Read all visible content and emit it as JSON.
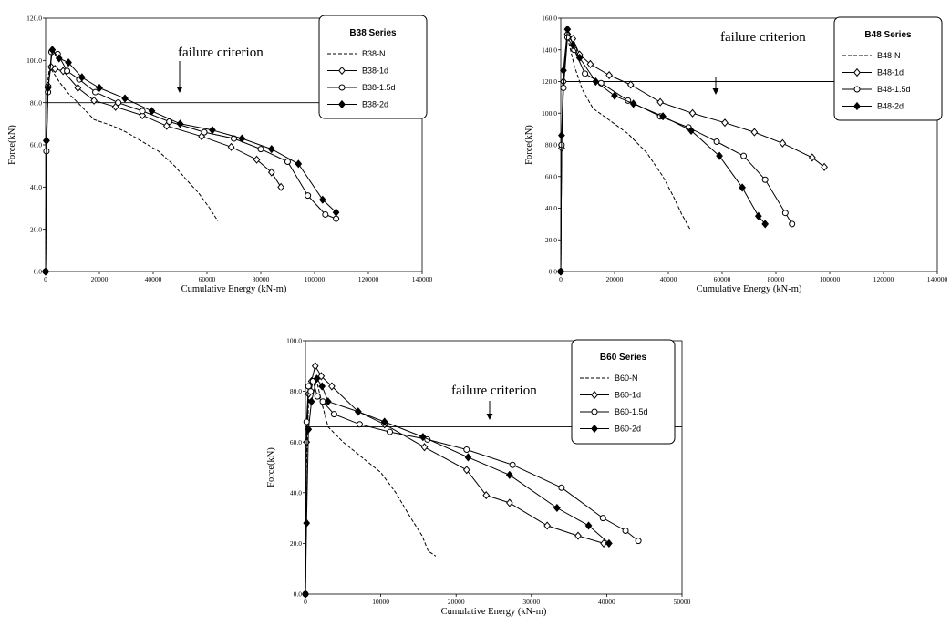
{
  "chart_data": [
    {
      "type": "line",
      "xlabel": "Cumulative Energy (kN-m)",
      "ylabel": "Force(kN)",
      "xlim": [
        0,
        140000
      ],
      "ylim": [
        0,
        120
      ],
      "xticks": [
        0,
        20000,
        40000,
        60000,
        80000,
        100000,
        120000,
        140000
      ],
      "xtick_labels": [
        "0",
        "20000",
        "40000",
        "60000",
        "80000",
        "100000",
        "120000",
        "140000"
      ],
      "yticks": [
        0,
        20,
        40,
        60,
        80,
        100,
        120
      ],
      "ytick_labels": [
        "0.0",
        "20.0",
        "40.0",
        "60.0",
        "80.0",
        "100.0",
        "120.0"
      ],
      "legend": {
        "title": "B38 Series",
        "placement": "top-right"
      },
      "reference_line": {
        "y": 80,
        "label": "failure criterion"
      },
      "series": [
        {
          "name": "B38-N",
          "style": "dashed",
          "marker": "none",
          "x": [
            0,
            300,
            800,
            1500,
            3000,
            5000,
            8000,
            12000,
            18000,
            25000,
            30000,
            38000,
            42000,
            48000,
            52000,
            57000,
            61000,
            64000
          ],
          "y": [
            0,
            55,
            90,
            97,
            94,
            90,
            85,
            80,
            72,
            69,
            66,
            60,
            57,
            50,
            44,
            37,
            30,
            24
          ]
        },
        {
          "name": "B38-1d",
          "style": "solid",
          "marker": "diamond-open",
          "x": [
            0,
            300,
            900,
            2000,
            3500,
            6500,
            12000,
            18000,
            26000,
            36000,
            45000,
            58000,
            69000,
            78500,
            84000,
            87500
          ],
          "y": [
            0,
            62,
            88,
            97,
            96,
            95,
            87,
            81,
            78,
            74,
            69,
            64,
            59,
            53,
            47,
            40
          ]
        },
        {
          "name": "B38-1.5d",
          "style": "solid",
          "marker": "circle-open",
          "x": [
            0,
            300,
            900,
            2200,
            4500,
            8000,
            12500,
            18500,
            27000,
            36000,
            46000,
            59000,
            70000,
            80000,
            90000,
            97500,
            104000,
            108000
          ],
          "y": [
            0,
            57,
            85,
            104,
            103,
            95,
            91,
            85,
            80,
            76,
            71,
            66,
            63,
            58,
            52,
            36,
            27,
            25
          ]
        },
        {
          "name": "B38-2d",
          "style": "solid",
          "marker": "diamond-filled",
          "x": [
            0,
            300,
            900,
            2500,
            5000,
            8500,
            13500,
            20000,
            29500,
            39500,
            50000,
            62000,
            73000,
            84000,
            94000,
            103000,
            108000
          ],
          "y": [
            0,
            62,
            87,
            105,
            101,
            99,
            92,
            87,
            82,
            76,
            70,
            67,
            63,
            58,
            51,
            34,
            28
          ]
        }
      ]
    },
    {
      "type": "line",
      "xlabel": "Cumulative Energy (kN-m)",
      "ylabel": "Force(kN)",
      "xlim": [
        0,
        140000
      ],
      "ylim": [
        0,
        160
      ],
      "xticks": [
        0,
        20000,
        40000,
        60000,
        80000,
        100000,
        120000,
        140000
      ],
      "xtick_labels": [
        "0",
        "20000",
        "40000",
        "60000",
        "80000",
        "100000",
        "120000",
        "140000"
      ],
      "yticks": [
        0,
        20,
        40,
        60,
        80,
        100,
        120,
        140,
        160
      ],
      "ytick_labels": [
        "0.0",
        "20.0",
        "40.0",
        "60.0",
        "80.0",
        "100.0",
        "120.0",
        "140.0",
        "160.0"
      ],
      "legend": {
        "title": "B48 Series",
        "placement": "top-right"
      },
      "reference_line": {
        "y": 120,
        "label": "failure criterion"
      },
      "series": [
        {
          "name": "B48-N",
          "style": "dashed",
          "marker": "none",
          "x": [
            0,
            300,
            1000,
            2500,
            5000,
            8000,
            12000,
            17000,
            25000,
            32000,
            38000,
            42000,
            45000,
            48000
          ],
          "y": [
            0,
            80,
            125,
            148,
            130,
            115,
            103,
            97,
            87,
            75,
            60,
            47,
            36,
            27
          ]
        },
        {
          "name": "B48-1d",
          "style": "solid",
          "marker": "diamond-open",
          "x": [
            0,
            300,
            1000,
            2500,
            4500,
            7000,
            11000,
            18000,
            26000,
            37000,
            49000,
            61000,
            72000,
            82500,
            93500,
            98000
          ],
          "y": [
            0,
            78,
            120,
            150,
            147,
            137,
            131,
            124,
            118,
            107,
            100,
            94,
            88,
            81,
            72,
            66
          ]
        },
        {
          "name": "B48-1.5d",
          "style": "solid",
          "marker": "circle-open",
          "x": [
            0,
            300,
            1000,
            2500,
            5000,
            9000,
            15000,
            25000,
            37000,
            47500,
            58000,
            68000,
            76000,
            83500,
            86000
          ],
          "y": [
            0,
            80,
            116,
            148,
            140,
            125,
            119,
            108,
            98,
            91,
            82,
            73,
            58,
            37,
            30
          ]
        },
        {
          "name": "B48-2d",
          "style": "solid",
          "marker": "diamond-filled",
          "x": [
            0,
            300,
            1000,
            2500,
            4500,
            7000,
            13000,
            20000,
            27000,
            38000,
            48500,
            59000,
            67500,
            73500,
            76000
          ],
          "y": [
            0,
            86,
            127,
            153,
            143,
            135,
            120,
            111,
            106,
            98,
            89,
            73,
            53,
            35,
            30
          ]
        }
      ]
    },
    {
      "type": "line",
      "xlabel": "Cumulative Energy (kN-m)",
      "ylabel": "Force(kN)",
      "xlim": [
        0,
        50000
      ],
      "ylim": [
        0,
        100
      ],
      "xticks": [
        0,
        10000,
        20000,
        30000,
        40000,
        50000
      ],
      "xtick_labels": [
        "0",
        "10000",
        "20000",
        "30000",
        "40000",
        "50000"
      ],
      "yticks": [
        0,
        20,
        40,
        60,
        80,
        100
      ],
      "ytick_labels": [
        "0.0",
        "20.0",
        "40.0",
        "60.0",
        "80.0",
        "100.0"
      ],
      "legend": {
        "title": "B60 Series",
        "placement": "top-right"
      },
      "reference_line": {
        "y": 66,
        "label": "failure criterion"
      },
      "series": [
        {
          "name": "B60-N",
          "style": "dashed",
          "marker": "none",
          "x": [
            0,
            150,
            400,
            800,
            1500,
            2200,
            3000,
            5000,
            7500,
            10000,
            12000,
            14000,
            15500,
            16300,
            17300
          ],
          "y": [
            0,
            50,
            75,
            85,
            84,
            75,
            66,
            60,
            54,
            48,
            40,
            30,
            23,
            17,
            15
          ]
        },
        {
          "name": "B60-1d",
          "style": "solid",
          "marker": "diamond-open",
          "x": [
            0,
            150,
            400,
            800,
            1300,
            2100,
            3500,
            7000,
            10500,
            15800,
            21400,
            24000,
            27100,
            32100,
            36200,
            39600
          ],
          "y": [
            0,
            60,
            79,
            84,
            90,
            86,
            82,
            72,
            67,
            58,
            49,
            39,
            36,
            27,
            23,
            20
          ]
        },
        {
          "name": "B60-1.5d",
          "style": "solid",
          "marker": "circle-open",
          "x": [
            0,
            150,
            400,
            700,
            1000,
            1600,
            2300,
            3800,
            7200,
            11200,
            16200,
            21400,
            27500,
            34000,
            39500,
            42500,
            44200
          ],
          "y": [
            0,
            68,
            82,
            80,
            84,
            78,
            76,
            71,
            67,
            64,
            61,
            57,
            51,
            42,
            30,
            25,
            21
          ]
        },
        {
          "name": "B60-2d",
          "style": "solid",
          "marker": "diamond-filled",
          "x": [
            0,
            150,
            400,
            800,
            1500,
            2200,
            3000,
            7000,
            10500,
            15600,
            21600,
            27100,
            33400,
            37600,
            40300
          ],
          "y": [
            0,
            28,
            65,
            76,
            85,
            82,
            76,
            72,
            68,
            62,
            54,
            47,
            34,
            27,
            20
          ]
        }
      ]
    }
  ]
}
